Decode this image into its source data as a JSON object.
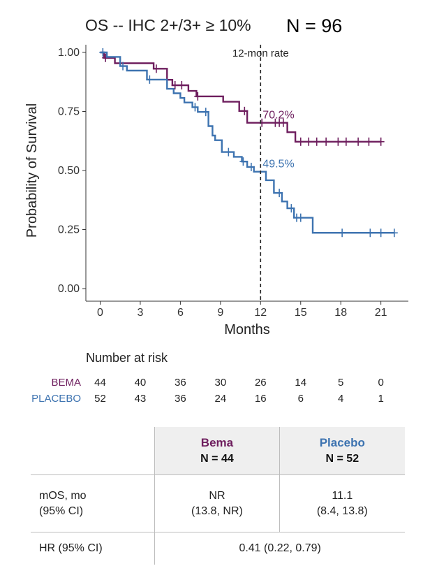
{
  "chart_data": {
    "type": "line",
    "subtype": "kaplan-meier",
    "title": "OS -- IHC 2+/3+ ≥ 10%",
    "subtitle_n": "N = 96",
    "xlabel": "Months",
    "ylabel": "Probability of Survival",
    "xlim": [
      -1,
      23
    ],
    "ylim": [
      0,
      1
    ],
    "xticks": [
      0,
      3,
      6,
      9,
      12,
      15,
      18,
      21
    ],
    "yticks": [
      0,
      0.25,
      0.5,
      0.75,
      1.0
    ],
    "ytick_labels": [
      "0.00",
      "0.25",
      "0.50",
      "0.75",
      "1.00"
    ],
    "reference_line": {
      "x": 12,
      "label": "12-mon rate"
    },
    "series": [
      {
        "name": "BEMA",
        "color": "#6e1e5e",
        "rate_label": "70.2%",
        "rate_value": 0.702,
        "steps": [
          [
            0,
            1.0
          ],
          [
            0.3,
            0.977
          ],
          [
            1.1,
            0.954
          ],
          [
            4.0,
            0.931
          ],
          [
            5.0,
            0.884
          ],
          [
            5.4,
            0.861
          ],
          [
            6.6,
            0.837
          ],
          [
            7.2,
            0.814
          ],
          [
            9.2,
            0.791
          ],
          [
            10.4,
            0.752
          ],
          [
            11.0,
            0.702
          ],
          [
            14.0,
            0.662
          ],
          [
            14.6,
            0.622
          ],
          [
            21.0,
            0.622
          ]
        ],
        "censors": [
          [
            0.4,
            0.977
          ],
          [
            4.2,
            0.931
          ],
          [
            5.6,
            0.861
          ],
          [
            6.1,
            0.861
          ],
          [
            7.3,
            0.814
          ],
          [
            10.8,
            0.752
          ],
          [
            12.1,
            0.702
          ],
          [
            13.1,
            0.702
          ],
          [
            13.4,
            0.702
          ],
          [
            13.7,
            0.702
          ],
          [
            15.0,
            0.622
          ],
          [
            15.6,
            0.622
          ],
          [
            16.2,
            0.622
          ],
          [
            16.9,
            0.622
          ],
          [
            17.8,
            0.622
          ],
          [
            18.4,
            0.622
          ],
          [
            19.3,
            0.622
          ],
          [
            20.1,
            0.622
          ],
          [
            21.0,
            0.622
          ]
        ]
      },
      {
        "name": "PLACEBO",
        "color": "#3d73b0",
        "rate_label": "49.5%",
        "rate_value": 0.495,
        "steps": [
          [
            0,
            1.0
          ],
          [
            0.5,
            0.981
          ],
          [
            1.5,
            0.942
          ],
          [
            2.0,
            0.923
          ],
          [
            3.5,
            0.885
          ],
          [
            5.0,
            0.846
          ],
          [
            5.5,
            0.827
          ],
          [
            6.0,
            0.807
          ],
          [
            6.3,
            0.788
          ],
          [
            6.9,
            0.768
          ],
          [
            7.3,
            0.748
          ],
          [
            8.1,
            0.688
          ],
          [
            8.4,
            0.648
          ],
          [
            8.6,
            0.628
          ],
          [
            9.1,
            0.578
          ],
          [
            10.0,
            0.558
          ],
          [
            10.6,
            0.538
          ],
          [
            11.0,
            0.515
          ],
          [
            11.5,
            0.495
          ],
          [
            12.4,
            0.459
          ],
          [
            13.0,
            0.405
          ],
          [
            13.6,
            0.369
          ],
          [
            14.0,
            0.34
          ],
          [
            14.5,
            0.3
          ],
          [
            15.9,
            0.236
          ],
          [
            22.0,
            0.236
          ]
        ],
        "censors": [
          [
            0.2,
            1.0
          ],
          [
            1.7,
            0.942
          ],
          [
            3.7,
            0.885
          ],
          [
            7.1,
            0.768
          ],
          [
            7.9,
            0.748
          ],
          [
            9.6,
            0.578
          ],
          [
            10.7,
            0.538
          ],
          [
            11.3,
            0.515
          ],
          [
            13.4,
            0.405
          ],
          [
            14.3,
            0.34
          ],
          [
            14.7,
            0.3
          ],
          [
            15.0,
            0.3
          ],
          [
            18.1,
            0.236
          ],
          [
            20.2,
            0.236
          ],
          [
            21.0,
            0.236
          ],
          [
            22.0,
            0.236
          ]
        ]
      }
    ],
    "number_at_risk": {
      "title": "Number at risk",
      "times": [
        0,
        3,
        6,
        9,
        12,
        15,
        18,
        21
      ],
      "rows": [
        {
          "label": "BEMA",
          "color": "#6e1e5e",
          "values": [
            "44",
            "40",
            "36",
            "30",
            "26",
            "14",
            "5",
            "0"
          ]
        },
        {
          "label": "PLACEBO",
          "color": "#3d73b0",
          "values": [
            "52",
            "43",
            "36",
            "24",
            "16",
            "6",
            "4",
            "1"
          ]
        }
      ]
    }
  },
  "summary_table": {
    "columns": [
      {
        "name": "Bema",
        "n": "N = 44",
        "color": "#6e1e5e"
      },
      {
        "name": "Placebo",
        "n": "N = 52",
        "color": "#3d73b0"
      }
    ],
    "mos": {
      "label_line1": "mOS, mo",
      "label_line2": "(95% CI)",
      "bema_line1": "NR",
      "bema_line2": "(13.8, NR)",
      "placebo_line1": "11.1",
      "placebo_line2": "(8.4, 13.8)"
    },
    "hr": {
      "label": "HR (95% CI)",
      "value": "0.41 (0.22, 0.79)"
    }
  }
}
